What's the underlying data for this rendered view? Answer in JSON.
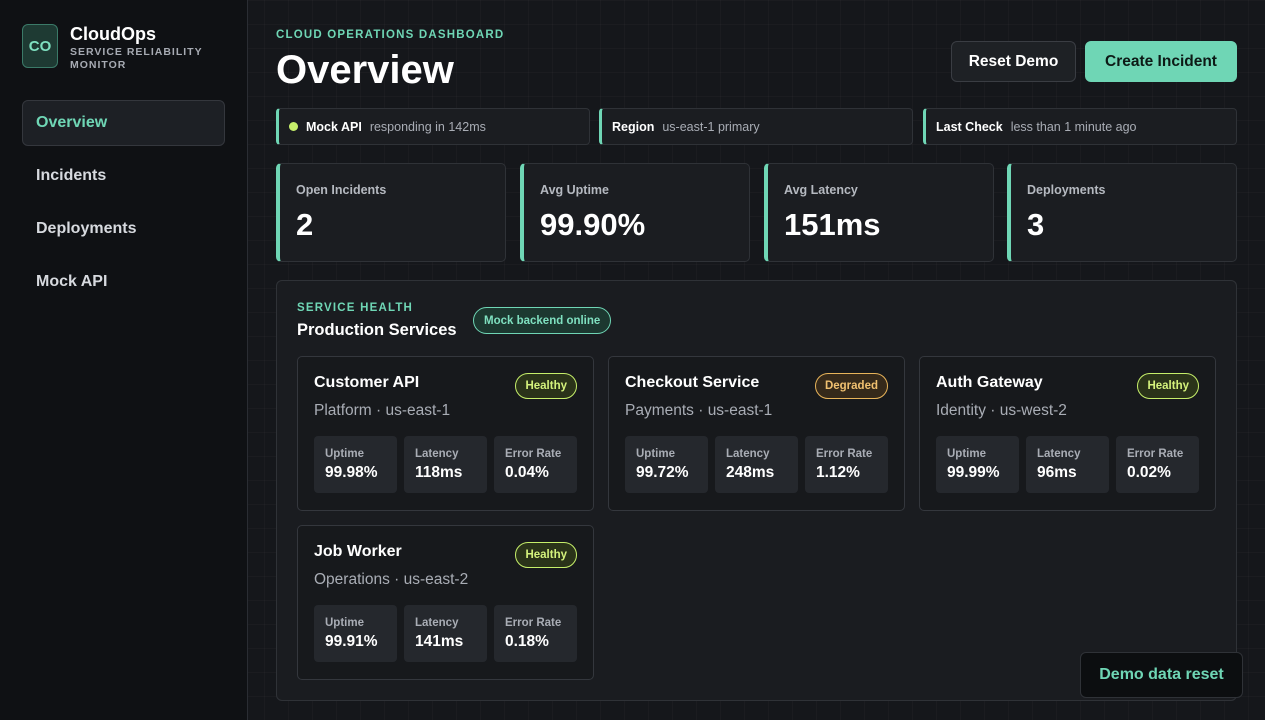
{
  "brand": {
    "logo_text": "CO",
    "name": "CloudOps",
    "subtitle": "SERVICE RELIABILITY MONITOR"
  },
  "nav": {
    "items": [
      {
        "label": "Overview",
        "active": true
      },
      {
        "label": "Incidents",
        "active": false
      },
      {
        "label": "Deployments",
        "active": false
      },
      {
        "label": "Mock API",
        "active": false
      }
    ]
  },
  "header": {
    "eyebrow": "CLOUD OPERATIONS DASHBOARD",
    "title": "Overview",
    "reset_label": "Reset Demo",
    "create_label": "Create Incident"
  },
  "status": [
    {
      "label": "Mock API",
      "value": "responding in 142ms"
    },
    {
      "label": "Region",
      "value": "us-east-1 primary"
    },
    {
      "label": "Last Check",
      "value": "less than 1 minute ago"
    }
  ],
  "kpis": [
    {
      "label": "Open Incidents",
      "value": "2"
    },
    {
      "label": "Avg Uptime",
      "value": "99.90%"
    },
    {
      "label": "Avg Latency",
      "value": "151ms"
    },
    {
      "label": "Deployments",
      "value": "3"
    }
  ],
  "health": {
    "eyebrow": "SERVICE HEALTH",
    "title": "Production Services",
    "badge": "Mock backend online",
    "metric_labels": {
      "uptime": "Uptime",
      "latency": "Latency",
      "error": "Error Rate"
    },
    "services": [
      {
        "name": "Customer API",
        "meta": "Platform · us-east-1",
        "status": "Healthy",
        "uptime": "99.98%",
        "latency": "118ms",
        "error": "0.04%"
      },
      {
        "name": "Checkout Service",
        "meta": "Payments · us-east-1",
        "status": "Degraded",
        "uptime": "99.72%",
        "latency": "248ms",
        "error": "1.12%"
      },
      {
        "name": "Auth Gateway",
        "meta": "Identity · us-west-2",
        "status": "Healthy",
        "uptime": "99.99%",
        "latency": "96ms",
        "error": "0.02%"
      },
      {
        "name": "Job Worker",
        "meta": "Operations · us-east-2",
        "status": "Healthy",
        "uptime": "99.91%",
        "latency": "141ms",
        "error": "0.18%"
      }
    ]
  },
  "toast": {
    "text": "Demo data reset"
  },
  "colors": {
    "accent": "#6fd6b5",
    "healthy": "#c6ef6a",
    "degraded": "#e8b45a",
    "background": "#15171b"
  }
}
